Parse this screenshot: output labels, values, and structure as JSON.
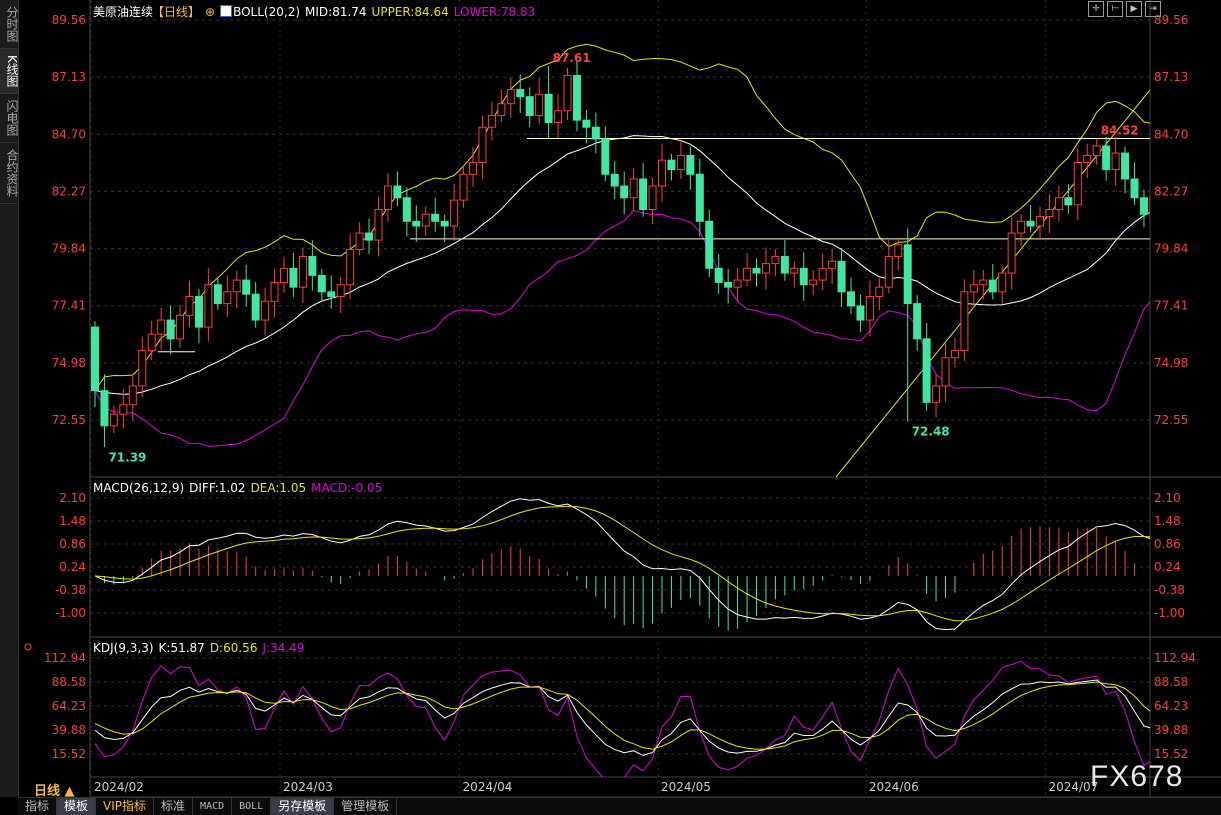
{
  "sidebar": {
    "items": [
      {
        "label": "分时图",
        "active": false
      },
      {
        "label": "K线图",
        "active": true
      },
      {
        "label": "闪电图",
        "active": false
      },
      {
        "label": "合约资料",
        "active": false
      }
    ]
  },
  "main_header": {
    "instrument": "美原油连续",
    "period_tag": "【日线】",
    "boll": "BOLL(20,2)",
    "mid": "MID:81.74",
    "upper": "UPPER:84.64",
    "lower": "LOWER:78.83"
  },
  "macd_header": {
    "name": "MACD(26,12,9)",
    "diff": "DIFF:1.02",
    "dea": "DEA:1.05",
    "macd": "MACD:-0.05"
  },
  "kdj_header": {
    "name": "KDJ(9,3,3)",
    "k": "K:51.87",
    "d": "D:60.56",
    "j": "J:34.49"
  },
  "toolbar_icons": [
    "crosshair-icon",
    "zoom-range-icon",
    "play-forward-icon",
    "jump-end-icon"
  ],
  "period_label": "日线 ▲",
  "tabs": [
    {
      "label": "指标",
      "selected": false
    },
    {
      "label": "模板",
      "selected": true
    },
    {
      "label": "VIP指标",
      "selected": false,
      "vip": true
    },
    {
      "label": "标准",
      "selected": false
    },
    {
      "label": "MACD",
      "selected": false,
      "mono": true
    },
    {
      "label": "BOLL",
      "selected": false,
      "mono": true
    },
    {
      "label": "另存模板",
      "selected": true
    },
    {
      "label": "管理模板",
      "selected": false
    }
  ],
  "watermark": "FX678",
  "colors": {
    "up": "#ff3c3c",
    "down": "#3ee8a0",
    "mid": "#ffffff",
    "upper": "#e6e600",
    "lower": "#e000e0",
    "axis_text": "#ff3c3c"
  },
  "chart_data": [
    {
      "type": "candlestick",
      "price_axis_ticks": [
        "89.56",
        "87.13",
        "84.70",
        "82.27",
        "79.84",
        "77.41",
        "74.98",
        "72.55"
      ],
      "date_ticks": [
        {
          "label": "2024/02",
          "index": 0
        },
        {
          "label": "2024/03",
          "index": 20
        },
        {
          "label": "2024/04",
          "index": 39
        },
        {
          "label": "2024/05",
          "index": 60
        },
        {
          "label": "2024/06",
          "index": 82
        },
        {
          "label": "2024/07",
          "index": 101
        }
      ],
      "first_open": 76.5,
      "closes": [
        73.8,
        72.3,
        72.8,
        73.2,
        74.0,
        75.5,
        76.2,
        76.8,
        76.0,
        77.0,
        77.8,
        76.5,
        78.3,
        77.5,
        78.0,
        78.5,
        77.9,
        76.8,
        77.6,
        78.4,
        79.0,
        78.2,
        79.5,
        78.7,
        78.0,
        77.8,
        78.3,
        79.8,
        80.5,
        80.2,
        81.5,
        82.5,
        82.0,
        81.0,
        80.8,
        81.3,
        81.0,
        80.8,
        81.9,
        83.0,
        83.5,
        85.0,
        85.5,
        86.0,
        86.6,
        86.3,
        85.5,
        86.4,
        85.2,
        85.7,
        87.2,
        85.3,
        85.0,
        84.5,
        83.0,
        82.5,
        82.0,
        82.8,
        81.5,
        82.5,
        83.6,
        83.2,
        83.8,
        83.0,
        81.0,
        79.0,
        78.4,
        78.2,
        78.5,
        79.0,
        78.8,
        79.2,
        79.5,
        78.8,
        79.0,
        78.3,
        78.5,
        79.0,
        79.3,
        78.0,
        77.4,
        76.8,
        77.8,
        78.2,
        79.5,
        80.0,
        77.5,
        76.0,
        73.3,
        74.0,
        75.2,
        75.5,
        78.0,
        78.3,
        78.5,
        78.0,
        78.8,
        80.5,
        81.0,
        80.8,
        81.2,
        81.5,
        82.0,
        81.7,
        83.5,
        83.8,
        84.2,
        83.2,
        83.9,
        82.8,
        82.0,
        81.3,
        82.0,
        82.4
      ],
      "annotations": [
        {
          "label": "71.39",
          "index": 1,
          "price": 71.39,
          "kind": "low"
        },
        {
          "label": "87.61",
          "index": 48,
          "price": 87.61,
          "kind": "high"
        },
        {
          "label": "72.48",
          "index": 86,
          "price": 72.48,
          "kind": "low"
        },
        {
          "label": "84.52",
          "index": 106,
          "price": 84.52,
          "kind": "high"
        }
      ],
      "price_range": [
        70.5,
        90.4
      ]
    },
    {
      "type": "macd",
      "axis_ticks": [
        "2.10",
        "1.48",
        "0.86",
        "0.24",
        "-0.38",
        "-1.00"
      ]
    },
    {
      "type": "kdj",
      "axis_ticks": [
        "112.94",
        "88.58",
        "64.23",
        "39.88",
        "15.52"
      ]
    }
  ]
}
